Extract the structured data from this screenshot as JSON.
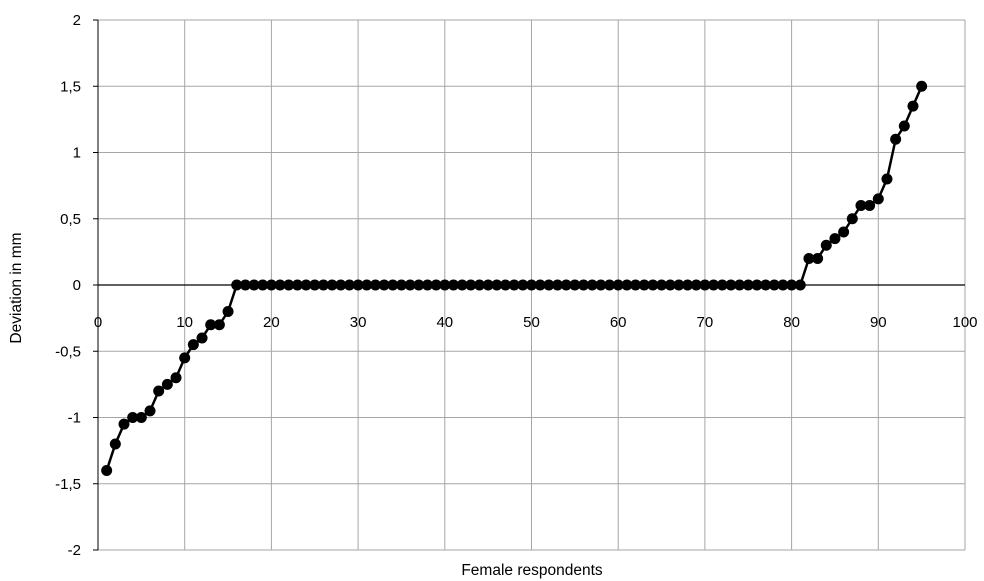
{
  "chart_data": {
    "type": "line",
    "title": "",
    "xlabel": "Female respondents",
    "ylabel": "Deviation in mm",
    "xlim": [
      0,
      100
    ],
    "ylim": [
      -2,
      2
    ],
    "xticks": [
      0,
      10,
      20,
      30,
      40,
      50,
      60,
      70,
      80,
      90,
      100
    ],
    "yticks": [
      -2,
      -1.5,
      -1,
      -0.5,
      0,
      0.5,
      1,
      1.5,
      2
    ],
    "xtick_labels": [
      "0",
      "10",
      "20",
      "30",
      "40",
      "50",
      "60",
      "70",
      "80",
      "90",
      "100"
    ],
    "ytick_labels": [
      "-2",
      "-1,5",
      "-1",
      "-0,5",
      "0",
      "0,5",
      "1",
      "1,5",
      "2"
    ],
    "grid": true,
    "legend": "none",
    "marker": "circle",
    "line_color": "#000000",
    "series": [
      {
        "x": [
          1,
          2,
          3,
          4,
          5,
          6,
          7,
          8,
          9,
          10,
          11,
          12,
          13,
          14,
          15,
          16,
          17,
          18,
          19,
          20,
          21,
          22,
          23,
          24,
          25,
          26,
          27,
          28,
          29,
          30,
          31,
          32,
          33,
          34,
          35,
          36,
          37,
          38,
          39,
          40,
          41,
          42,
          43,
          44,
          45,
          46,
          47,
          48,
          49,
          50,
          51,
          52,
          53,
          54,
          55,
          56,
          57,
          58,
          59,
          60,
          61,
          62,
          63,
          64,
          65,
          66,
          67,
          68,
          69,
          70,
          71,
          72,
          73,
          74,
          75,
          76,
          77,
          78,
          79,
          80,
          81,
          82,
          83,
          84,
          85,
          86,
          87,
          88,
          89,
          90,
          91,
          92,
          93,
          94,
          95
        ],
        "values": [
          -1.4,
          -1.2,
          -1.05,
          -1.0,
          -1.0,
          -0.95,
          -0.8,
          -0.75,
          -0.7,
          -0.55,
          -0.45,
          -0.4,
          -0.3,
          -0.3,
          -0.2,
          0,
          0,
          0,
          0,
          0,
          0,
          0,
          0,
          0,
          0,
          0,
          0,
          0,
          0,
          0,
          0,
          0,
          0,
          0,
          0,
          0,
          0,
          0,
          0,
          0,
          0,
          0,
          0,
          0,
          0,
          0,
          0,
          0,
          0,
          0,
          0,
          0,
          0,
          0,
          0,
          0,
          0,
          0,
          0,
          0,
          0,
          0,
          0,
          0,
          0,
          0,
          0,
          0,
          0,
          0,
          0,
          0,
          0,
          0,
          0,
          0,
          0,
          0,
          0,
          0,
          0,
          0.2,
          0.2,
          0.3,
          0.35,
          0.4,
          0.5,
          0.6,
          0.6,
          0.65,
          0.8,
          1.1,
          1.2,
          1.35,
          1.5
        ]
      }
    ]
  }
}
